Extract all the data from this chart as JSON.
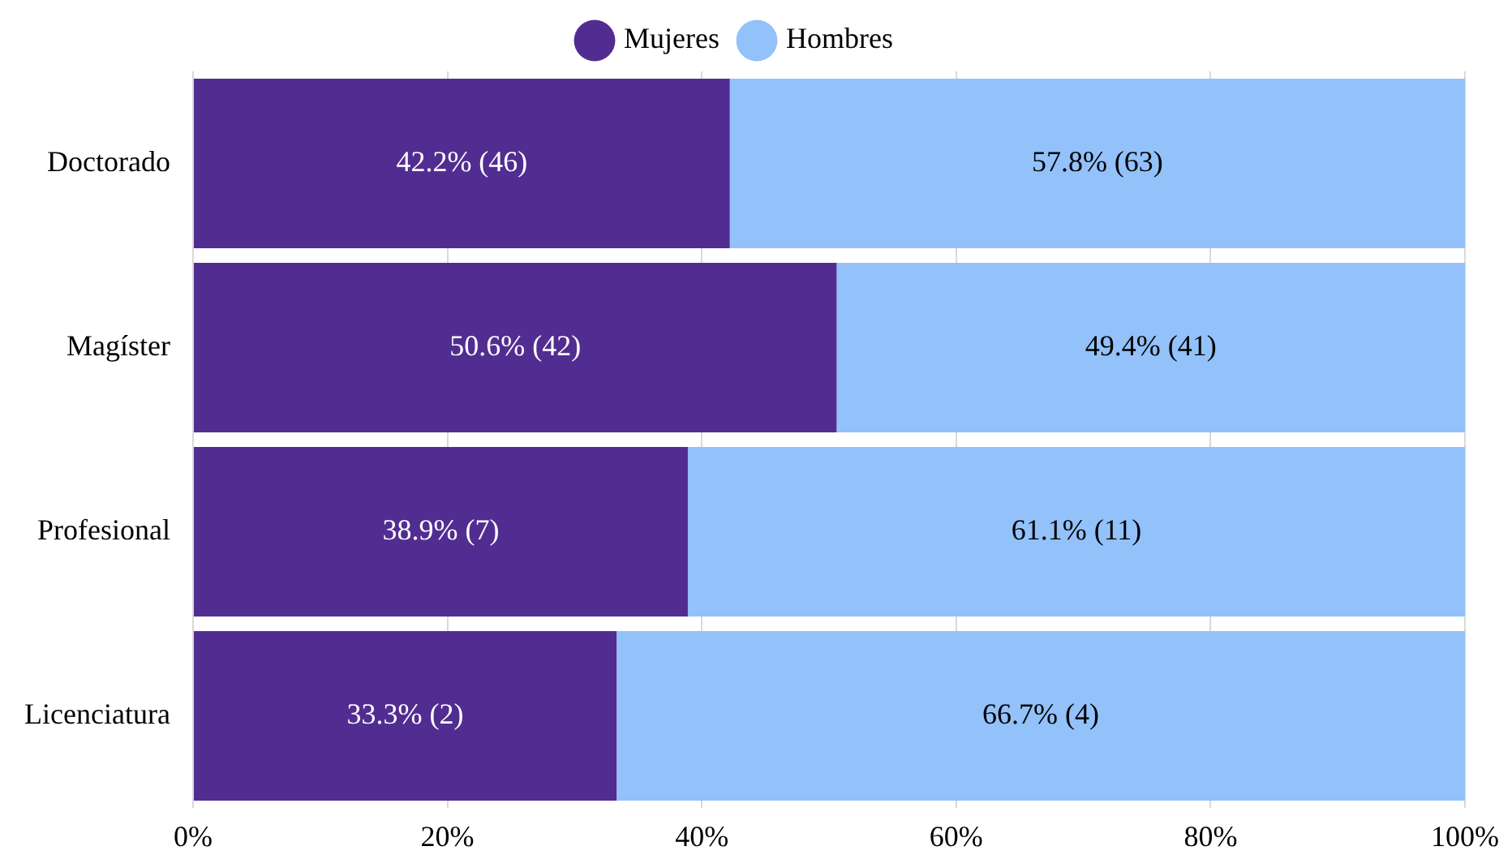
{
  "chart_data": {
    "type": "bar",
    "orientation": "horizontal",
    "stacked": true,
    "categories": [
      "Doctorado",
      "Magíster",
      "Profesional",
      "Licenciatura"
    ],
    "series": [
      {
        "name": "Mujeres",
        "color": "#522d91",
        "values": [
          42.2,
          50.6,
          38.9,
          33.3
        ],
        "value_labels": [
          "42.2% (46)",
          "50.6% (42)",
          "38.9% (7)",
          "33.3% (2)"
        ]
      },
      {
        "name": "Hombres",
        "color": "#93c1fa",
        "values": [
          57.8,
          49.4,
          61.1,
          66.7
        ],
        "value_labels": [
          "57.8% (63)",
          "49.4% (41)",
          "61.1% (11)",
          "66.7% (4)"
        ]
      }
    ],
    "xlim": [
      0,
      100
    ],
    "xticks": [
      {
        "value": 0,
        "label": "0%"
      },
      {
        "value": 20,
        "label": "20%"
      },
      {
        "value": 40,
        "label": "40%"
      },
      {
        "value": 60,
        "label": "60%"
      },
      {
        "value": 80,
        "label": "80%"
      },
      {
        "value": 100,
        "label": "100%"
      }
    ],
    "grid": "x",
    "legend": "top"
  }
}
